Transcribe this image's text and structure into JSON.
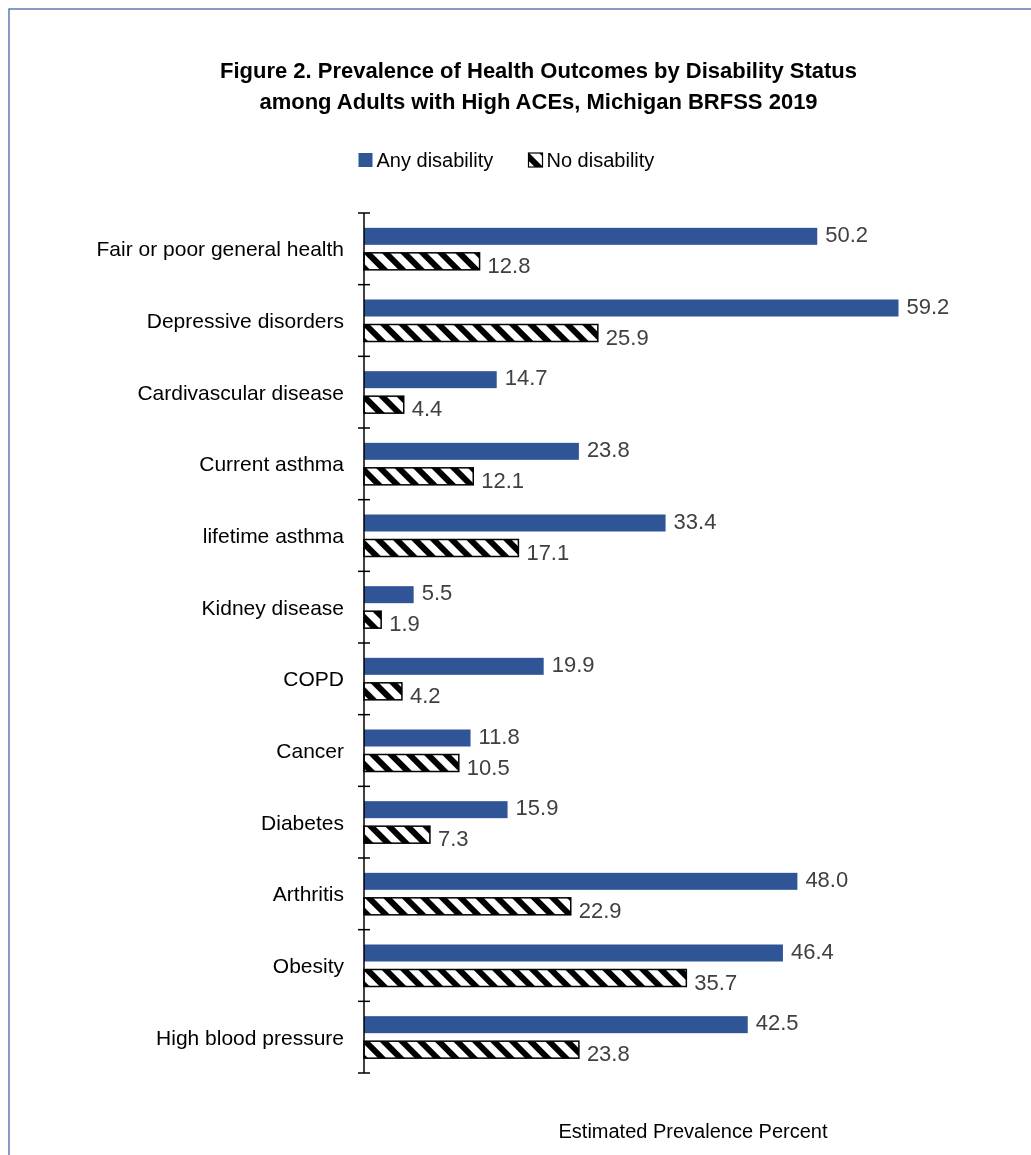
{
  "chart_data": {
    "type": "bar",
    "orientation": "horizontal",
    "title": "Figure 2. Prevalence of Health Outcomes by Disability Status among Adults with High ACEs, Michigan BRFSS 2019",
    "xlabel": "Estimated Prevalence Percent",
    "categories": [
      "Fair or poor general health",
      "Depressive disorders",
      "Cardivascular disease",
      "Current asthma",
      "lifetime asthma",
      "Kidney disease",
      "COPD",
      "Cancer",
      "Diabetes",
      "Arthritis",
      "Obesity",
      "High blood pressure"
    ],
    "series": [
      {
        "name": "Any disability",
        "color": "#2f5597",
        "values": [
          50.2,
          59.2,
          14.7,
          23.8,
          33.4,
          5.5,
          19.9,
          11.8,
          15.9,
          48.0,
          46.4,
          42.5
        ],
        "value_labels": [
          "50.2",
          "59.2",
          "14.7",
          "23.8",
          "33.4",
          "5.5",
          "19.9",
          "11.8",
          "15.9",
          "48.0",
          "46.4",
          "42.5"
        ]
      },
      {
        "name": "No disability",
        "color": "#000000",
        "values": [
          12.8,
          25.9,
          4.4,
          12.1,
          17.1,
          1.9,
          4.2,
          10.5,
          7.3,
          22.9,
          35.7,
          23.8
        ],
        "value_labels": [
          "12.8",
          "25.9",
          "4.4",
          "12.1",
          "17.1",
          "1.9",
          "4.2",
          "10.5",
          "7.3",
          "22.9",
          "35.7",
          "23.8"
        ]
      }
    ],
    "legend": "top",
    "tick_labels": "y"
  }
}
